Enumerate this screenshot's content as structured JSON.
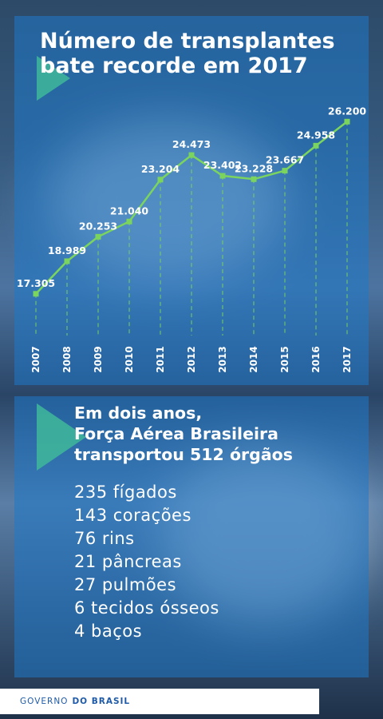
{
  "title": "Número de transplantes bate recorde em 2017",
  "chart_data": {
    "type": "line",
    "title": "Número de transplantes bate recorde em 2017",
    "categories": [
      "2007",
      "2008",
      "2009",
      "2010",
      "2011",
      "2012",
      "2013",
      "2014",
      "2015",
      "2016",
      "2017"
    ],
    "values": [
      17305,
      18989,
      20253,
      21040,
      23204,
      24473,
      23402,
      23228,
      23667,
      24958,
      26200
    ],
    "value_labels": [
      "17.305",
      "18.989",
      "20.253",
      "21.040",
      "23.204",
      "24.473",
      "23.402",
      "23.228",
      "23.667",
      "24.958",
      "26.200"
    ],
    "ylim": [
      16800,
      26500
    ],
    "grid": "dashed drop lines",
    "line_color": "#7bd45e"
  },
  "headline": {
    "line1": "Em dois anos,",
    "line2": "Força Aérea Brasileira",
    "line3": "transportou 512 órgãos"
  },
  "organs": [
    "235 fígados",
    "143 corações",
    "76 rins",
    "21 pâncreas",
    "27 pulmões",
    "6 tecidos ósseos",
    "4 baços"
  ],
  "footer": {
    "part1": "GOVERNO",
    "part2": "DO BRASIL"
  },
  "colors": {
    "panel": "#1f78c8",
    "accent": "#3fb89a",
    "footer_text": "#1e5aa8"
  }
}
